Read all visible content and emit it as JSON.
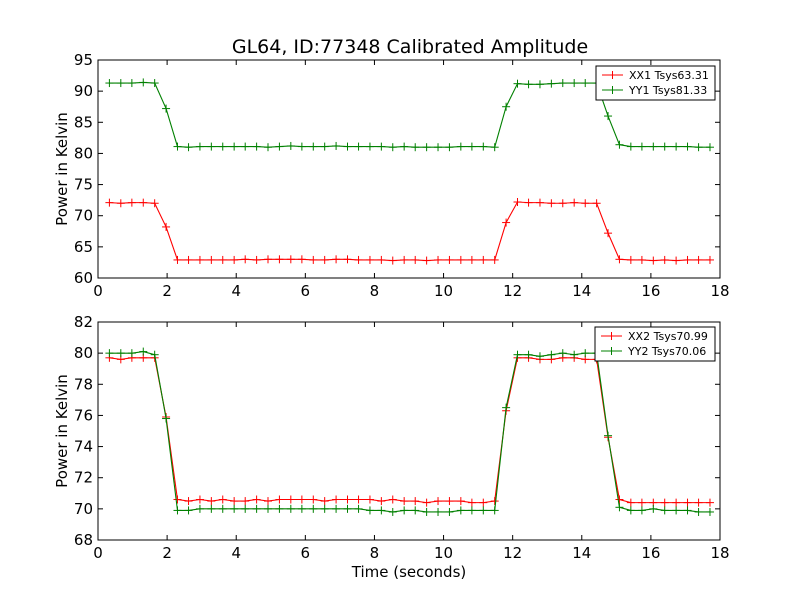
{
  "chart_data": {
    "title": "GL64, ID:77348 Calibrated Amplitude",
    "charts": [
      {
        "type": "line",
        "xlabel": "",
        "ylabel": "Power in Kelvin",
        "xlim": [
          0,
          18
        ],
        "ylim": [
          60,
          95
        ],
        "xticks": [
          0,
          2,
          4,
          6,
          8,
          10,
          12,
          14,
          16,
          18
        ],
        "yticks": [
          60,
          65,
          70,
          75,
          80,
          85,
          90,
          95
        ],
        "legend_position": "top-right",
        "x": [
          0.33,
          0.66,
          0.98,
          1.31,
          1.64,
          1.97,
          2.3,
          2.62,
          2.95,
          3.28,
          3.61,
          3.94,
          4.26,
          4.59,
          4.92,
          5.25,
          5.58,
          5.9,
          6.23,
          6.56,
          6.89,
          7.22,
          7.54,
          7.87,
          8.2,
          8.53,
          8.86,
          9.18,
          9.51,
          9.84,
          10.17,
          10.5,
          10.82,
          11.15,
          11.48,
          11.81,
          12.14,
          12.46,
          12.79,
          13.12,
          13.45,
          13.78,
          14.1,
          14.43,
          14.76,
          15.09,
          15.42,
          15.74,
          16.07,
          16.4,
          16.73,
          17.06,
          17.38,
          17.71
        ],
        "series": [
          {
            "name": "XX1 Tsys63.31",
            "color": "#ff0000",
            "values": [
              72.1,
              72.0,
              72.1,
              72.1,
              72.0,
              68.2,
              62.9,
              62.9,
              62.9,
              62.9,
              62.9,
              62.9,
              63.0,
              62.9,
              63.0,
              63.0,
              63.0,
              63.0,
              62.9,
              62.9,
              63.0,
              63.0,
              62.9,
              62.9,
              62.9,
              62.8,
              62.9,
              62.9,
              62.8,
              62.9,
              62.9,
              62.9,
              62.9,
              62.9,
              62.9,
              68.9,
              72.2,
              72.1,
              72.1,
              72.0,
              72.0,
              72.1,
              72.0,
              72.0,
              67.2,
              63.0,
              62.9,
              62.9,
              62.8,
              62.9,
              62.8,
              62.9,
              62.9,
              62.9
            ]
          },
          {
            "name": "YY1 Tsys81.33",
            "color": "#008000",
            "values": [
              91.3,
              91.3,
              91.3,
              91.4,
              91.3,
              87.2,
              81.1,
              81.0,
              81.1,
              81.1,
              81.1,
              81.1,
              81.1,
              81.1,
              81.0,
              81.1,
              81.2,
              81.1,
              81.1,
              81.1,
              81.2,
              81.1,
              81.1,
              81.1,
              81.1,
              81.0,
              81.1,
              81.0,
              81.0,
              81.0,
              81.0,
              81.1,
              81.1,
              81.1,
              81.0,
              87.5,
              91.2,
              91.1,
              91.1,
              91.2,
              91.3,
              91.3,
              91.3,
              91.3,
              86.0,
              81.4,
              81.1,
              81.1,
              81.1,
              81.1,
              81.1,
              81.1,
              81.0,
              81.0
            ]
          }
        ]
      },
      {
        "type": "line",
        "xlabel": "Time (seconds)",
        "ylabel": "Power in Kelvin",
        "xlim": [
          0,
          18
        ],
        "ylim": [
          68,
          82
        ],
        "xticks": [
          0,
          2,
          4,
          6,
          8,
          10,
          12,
          14,
          16,
          18
        ],
        "yticks": [
          68,
          70,
          72,
          74,
          76,
          78,
          80,
          82
        ],
        "legend_position": "top-right",
        "x": [
          0.33,
          0.66,
          0.98,
          1.31,
          1.64,
          1.97,
          2.3,
          2.62,
          2.95,
          3.28,
          3.61,
          3.94,
          4.26,
          4.59,
          4.92,
          5.25,
          5.58,
          5.9,
          6.23,
          6.56,
          6.89,
          7.22,
          7.54,
          7.87,
          8.2,
          8.53,
          8.86,
          9.18,
          9.51,
          9.84,
          10.17,
          10.5,
          10.82,
          11.15,
          11.48,
          11.81,
          12.14,
          12.46,
          12.79,
          13.12,
          13.45,
          13.78,
          14.1,
          14.43,
          14.76,
          15.09,
          15.42,
          15.74,
          16.07,
          16.4,
          16.73,
          17.06,
          17.38,
          17.71
        ],
        "series": [
          {
            "name": "XX2 Tsys70.99",
            "color": "#ff0000",
            "values": [
              79.7,
              79.6,
              79.7,
              79.7,
              79.7,
              75.9,
              70.6,
              70.5,
              70.6,
              70.5,
              70.6,
              70.5,
              70.5,
              70.6,
              70.5,
              70.6,
              70.6,
              70.6,
              70.6,
              70.5,
              70.6,
              70.6,
              70.6,
              70.6,
              70.5,
              70.6,
              70.5,
              70.5,
              70.4,
              70.5,
              70.5,
              70.5,
              70.4,
              70.4,
              70.5,
              76.3,
              79.7,
              79.7,
              79.6,
              79.6,
              79.7,
              79.7,
              79.6,
              79.6,
              74.6,
              70.6,
              70.4,
              70.4,
              70.4,
              70.4,
              70.4,
              70.4,
              70.4,
              70.4
            ]
          },
          {
            "name": "YY2 Tsys70.06",
            "color": "#008000",
            "values": [
              80.0,
              80.0,
              80.0,
              80.1,
              79.9,
              75.8,
              69.9,
              69.9,
              70.0,
              70.0,
              70.0,
              70.0,
              70.0,
              70.0,
              70.0,
              70.0,
              70.0,
              70.0,
              70.0,
              70.0,
              70.0,
              70.0,
              70.0,
              69.9,
              69.9,
              69.8,
              69.9,
              69.9,
              69.8,
              69.8,
              69.8,
              69.9,
              69.9,
              69.9,
              69.9,
              76.5,
              79.9,
              79.9,
              79.8,
              79.9,
              80.0,
              79.9,
              80.0,
              80.0,
              74.7,
              70.1,
              69.9,
              69.9,
              70.0,
              69.9,
              69.9,
              69.9,
              69.8,
              69.8
            ]
          }
        ]
      }
    ]
  }
}
